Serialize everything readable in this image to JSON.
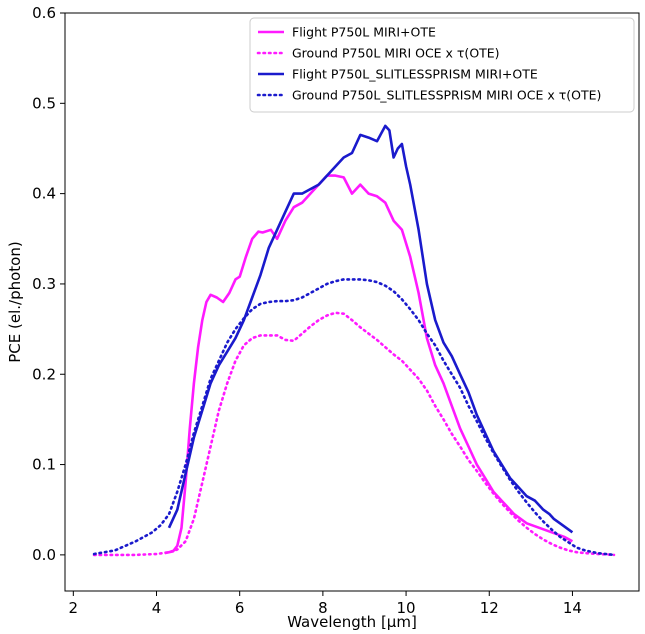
{
  "chart_data": {
    "type": "line",
    "xlabel": "Wavelength [µm]",
    "ylabel": "PCE (el./photon)",
    "xlim": [
      1.8,
      15.6
    ],
    "ylim": [
      -0.04,
      0.6
    ],
    "xticks": [
      2,
      4,
      6,
      8,
      10,
      12,
      14
    ],
    "yticks": [
      0.0,
      0.1,
      0.2,
      0.3,
      0.4,
      0.5,
      0.6
    ],
    "grid": false,
    "legend_position": "top-right",
    "series": [
      {
        "name": "Flight P750L MIRI+OTE",
        "color": "#ff1aff",
        "style": "solid",
        "x": [
          4.2,
          4.4,
          4.5,
          4.6,
          4.7,
          4.8,
          4.9,
          5.0,
          5.1,
          5.2,
          5.3,
          5.45,
          5.6,
          5.75,
          5.9,
          6.0,
          6.15,
          6.3,
          6.45,
          6.55,
          6.75,
          6.9,
          7.1,
          7.3,
          7.5,
          7.7,
          7.9,
          8.1,
          8.3,
          8.5,
          8.7,
          8.9,
          9.1,
          9.3,
          9.5,
          9.7,
          9.9,
          10.1,
          10.3,
          10.5,
          10.7,
          10.9,
          11.1,
          11.3,
          11.5,
          11.7,
          11.9,
          12.1,
          12.3,
          12.6,
          12.9,
          13.2,
          13.5,
          13.8,
          14.0
        ],
        "y": [
          0.002,
          0.004,
          0.01,
          0.03,
          0.08,
          0.14,
          0.19,
          0.23,
          0.26,
          0.28,
          0.288,
          0.285,
          0.28,
          0.29,
          0.305,
          0.308,
          0.33,
          0.35,
          0.358,
          0.357,
          0.36,
          0.35,
          0.37,
          0.385,
          0.39,
          0.4,
          0.41,
          0.42,
          0.42,
          0.418,
          0.4,
          0.41,
          0.4,
          0.397,
          0.39,
          0.37,
          0.36,
          0.33,
          0.29,
          0.24,
          0.21,
          0.19,
          0.165,
          0.14,
          0.12,
          0.1,
          0.085,
          0.07,
          0.06,
          0.045,
          0.035,
          0.03,
          0.025,
          0.02,
          0.015
        ]
      },
      {
        "name": "Ground P750L MIRI OCE x τ(OTE)",
        "color": "#ff1aff",
        "style": "dotted",
        "x": [
          2.5,
          3.0,
          3.5,
          4.0,
          4.3,
          4.5,
          4.7,
          4.9,
          5.1,
          5.3,
          5.5,
          5.7,
          5.9,
          6.1,
          6.3,
          6.5,
          6.7,
          6.9,
          7.1,
          7.3,
          7.5,
          7.7,
          7.9,
          8.1,
          8.3,
          8.5,
          8.7,
          8.9,
          9.1,
          9.3,
          9.5,
          9.7,
          9.9,
          10.1,
          10.3,
          10.5,
          10.7,
          10.9,
          11.1,
          11.3,
          11.5,
          11.7,
          11.9,
          12.1,
          12.3,
          12.5,
          12.7,
          12.9,
          13.1,
          13.3,
          13.5,
          13.7,
          13.9,
          14.1,
          14.3,
          14.6,
          15.0
        ],
        "y": [
          0.0,
          0.0,
          0.0,
          0.001,
          0.003,
          0.006,
          0.015,
          0.04,
          0.08,
          0.12,
          0.16,
          0.19,
          0.215,
          0.232,
          0.24,
          0.243,
          0.243,
          0.243,
          0.238,
          0.237,
          0.245,
          0.253,
          0.26,
          0.265,
          0.268,
          0.267,
          0.26,
          0.252,
          0.245,
          0.238,
          0.23,
          0.222,
          0.215,
          0.205,
          0.195,
          0.182,
          0.165,
          0.15,
          0.134,
          0.12,
          0.105,
          0.093,
          0.08,
          0.068,
          0.057,
          0.047,
          0.038,
          0.03,
          0.023,
          0.017,
          0.012,
          0.008,
          0.005,
          0.003,
          0.002,
          0.001,
          0.0
        ]
      },
      {
        "name": "Flight P750L_SLITLESSPRISM MIRI+OTE",
        "color": "#1a1acc",
        "style": "solid",
        "x": [
          4.3,
          4.5,
          4.7,
          4.9,
          5.1,
          5.3,
          5.5,
          5.7,
          5.9,
          6.1,
          6.3,
          6.5,
          6.7,
          6.9,
          7.1,
          7.3,
          7.5,
          7.7,
          7.9,
          8.1,
          8.3,
          8.5,
          8.7,
          8.9,
          9.1,
          9.3,
          9.5,
          9.6,
          9.7,
          9.8,
          9.9,
          10.0,
          10.1,
          10.3,
          10.5,
          10.7,
          10.9,
          11.1,
          11.3,
          11.5,
          11.7,
          11.9,
          12.1,
          12.3,
          12.5,
          12.7,
          12.9,
          13.1,
          13.3,
          13.45,
          13.55,
          13.7,
          13.85,
          14.0
        ],
        "y": [
          0.03,
          0.05,
          0.09,
          0.13,
          0.16,
          0.19,
          0.21,
          0.225,
          0.24,
          0.26,
          0.285,
          0.31,
          0.34,
          0.36,
          0.38,
          0.4,
          0.4,
          0.405,
          0.41,
          0.42,
          0.43,
          0.44,
          0.445,
          0.465,
          0.462,
          0.458,
          0.475,
          0.47,
          0.44,
          0.45,
          0.455,
          0.43,
          0.41,
          0.36,
          0.3,
          0.26,
          0.235,
          0.22,
          0.2,
          0.18,
          0.155,
          0.135,
          0.115,
          0.1,
          0.085,
          0.075,
          0.065,
          0.06,
          0.05,
          0.045,
          0.04,
          0.035,
          0.03,
          0.025
        ]
      },
      {
        "name": "Ground P750L_SLITLESSPRISM MIRI OCE x τ(OTE)",
        "color": "#1a1acc",
        "style": "dotted",
        "x": [
          2.5,
          3.0,
          3.5,
          3.9,
          4.1,
          4.3,
          4.5,
          4.7,
          4.9,
          5.1,
          5.3,
          5.5,
          5.7,
          5.9,
          6.1,
          6.3,
          6.5,
          6.7,
          6.9,
          7.1,
          7.3,
          7.5,
          7.7,
          7.9,
          8.1,
          8.3,
          8.5,
          8.7,
          8.9,
          9.1,
          9.3,
          9.5,
          9.7,
          9.9,
          10.1,
          10.3,
          10.5,
          10.7,
          10.9,
          11.1,
          11.3,
          11.5,
          11.7,
          11.9,
          12.1,
          12.3,
          12.5,
          12.7,
          12.9,
          13.1,
          13.3,
          13.5,
          13.7,
          13.9,
          14.1,
          14.3,
          14.6,
          15.0
        ],
        "y": [
          0.001,
          0.005,
          0.015,
          0.025,
          0.033,
          0.045,
          0.07,
          0.1,
          0.135,
          0.165,
          0.195,
          0.215,
          0.235,
          0.25,
          0.262,
          0.272,
          0.278,
          0.28,
          0.281,
          0.281,
          0.282,
          0.285,
          0.29,
          0.295,
          0.3,
          0.303,
          0.305,
          0.305,
          0.305,
          0.304,
          0.302,
          0.298,
          0.292,
          0.283,
          0.272,
          0.26,
          0.245,
          0.232,
          0.215,
          0.2,
          0.185,
          0.165,
          0.148,
          0.13,
          0.113,
          0.098,
          0.083,
          0.07,
          0.058,
          0.047,
          0.037,
          0.028,
          0.02,
          0.014,
          0.008,
          0.005,
          0.002,
          0.0
        ]
      }
    ]
  }
}
